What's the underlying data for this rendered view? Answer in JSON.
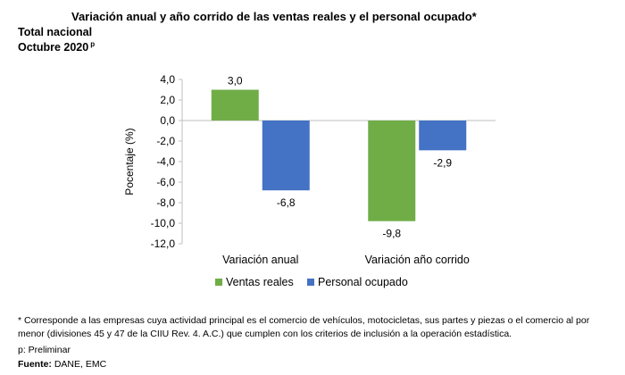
{
  "title": "Variación anual y año corrido de las ventas reales y el personal ocupado*",
  "subtitle1": "Total nacional",
  "subtitle2": "Octubre 2020",
  "subtitle2_sup": "p",
  "chart_data": {
    "type": "bar",
    "categories": [
      "Variación anual",
      "Variación año corrido"
    ],
    "series": [
      {
        "name": "Ventas reales",
        "values": [
          3.0,
          -9.8
        ],
        "labels": [
          "3,0",
          "-9,8"
        ],
        "color": "#70ad47"
      },
      {
        "name": "Personal ocupado",
        "values": [
          -6.8,
          -2.9
        ],
        "labels": [
          "-6,8",
          "-2,9"
        ],
        "color": "#4472c4"
      }
    ],
    "ylabel": "Pocentaje (%)",
    "ylim": [
      -12,
      4
    ],
    "yticks": [
      4,
      2,
      0,
      -2,
      -4,
      -6,
      -8,
      -10,
      -12
    ],
    "ytick_labels": [
      "4,0",
      "2,0",
      "0,0",
      "-2,0",
      "-4,0",
      "-6,0",
      "-8,0",
      "-10,0",
      "-12,0"
    ],
    "legend_position": "bottom",
    "grid": false
  },
  "footnote1": "* Corresponde a las empresas cuya actividad principal es el comercio de vehículos, motocicletas, sus partes y piezas o el comercio al por menor (divisiones 45 y 47 de la CIIU Rev. 4. A.C.) que cumplen con los criterios de inclusión a la operación estadística.",
  "footnote2": "p: Preliminar",
  "source_label": "Fuente:",
  "source_value": "DANE, EMC"
}
